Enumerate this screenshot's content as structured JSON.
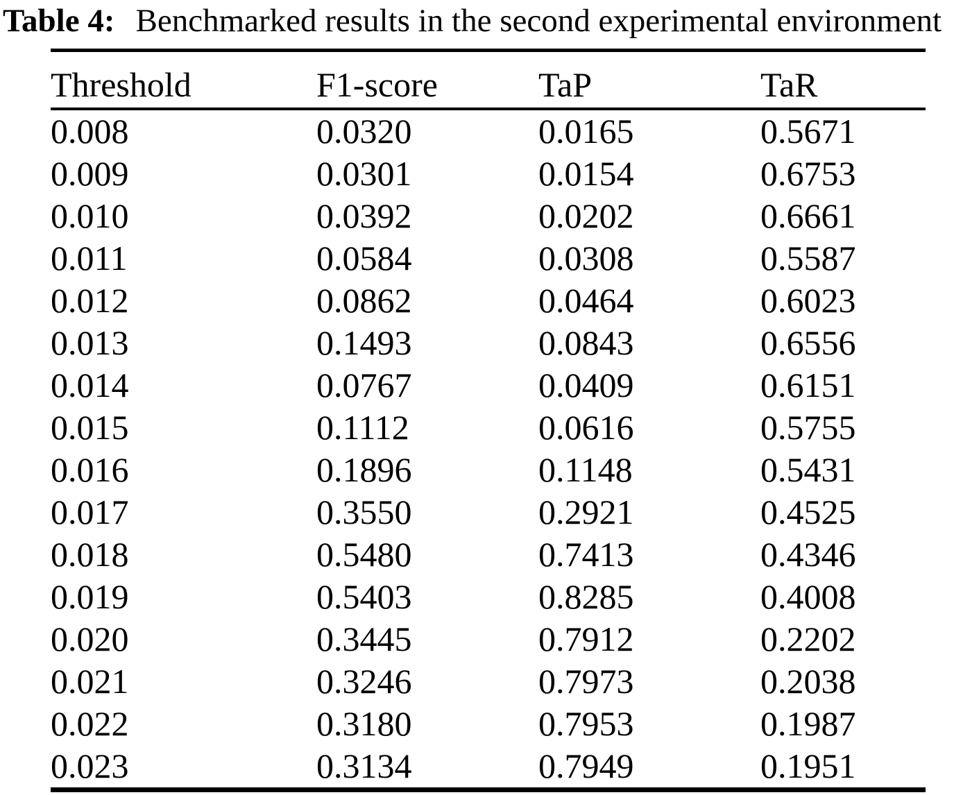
{
  "caption": {
    "label": "Table 4:",
    "text": "Benchmarked results in the second experimental environment"
  },
  "table": {
    "columns": [
      "Threshold",
      "F1-score",
      "TaP",
      "TaR"
    ],
    "rows": [
      [
        "0.008",
        "0.0320",
        "0.0165",
        "0.5671"
      ],
      [
        "0.009",
        "0.0301",
        "0.0154",
        "0.6753"
      ],
      [
        "0.010",
        "0.0392",
        "0.0202",
        "0.6661"
      ],
      [
        "0.011",
        "0.0584",
        "0.0308",
        "0.5587"
      ],
      [
        "0.012",
        "0.0862",
        "0.0464",
        "0.6023"
      ],
      [
        "0.013",
        "0.1493",
        "0.0843",
        "0.6556"
      ],
      [
        "0.014",
        "0.0767",
        "0.0409",
        "0.6151"
      ],
      [
        "0.015",
        "0.1112",
        "0.0616",
        "0.5755"
      ],
      [
        "0.016",
        "0.1896",
        "0.1148",
        "0.5431"
      ],
      [
        "0.017",
        "0.3550",
        "0.2921",
        "0.4525"
      ],
      [
        "0.018",
        "0.5480",
        "0.7413",
        "0.4346"
      ],
      [
        "0.019",
        "0.5403",
        "0.8285",
        "0.4008"
      ],
      [
        "0.020",
        "0.3445",
        "0.7912",
        "0.2202"
      ],
      [
        "0.021",
        "0.3246",
        "0.7973",
        "0.2038"
      ],
      [
        "0.022",
        "0.3180",
        "0.7953",
        "0.1987"
      ],
      [
        "0.023",
        "0.3134",
        "0.7949",
        "0.1951"
      ]
    ]
  },
  "colors": {
    "background": "#ffffff",
    "text": "#000000",
    "rule": "#000000"
  }
}
